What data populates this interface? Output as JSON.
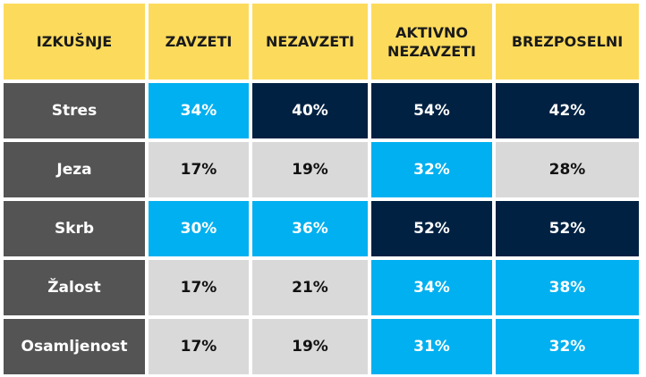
{
  "header": {
    "col0": "IZKUŠNJE",
    "col1": "ZAVZETI",
    "col2": "NEZAVZETI",
    "col3": "AKTIVNO\nNEZAVZETI",
    "col4": "BREZPOSELNI"
  },
  "rows": [
    {
      "label": "Stres",
      "values": [
        "34%",
        "40%",
        "54%",
        "42%"
      ],
      "shades": [
        "light",
        "dark",
        "dark",
        "dark"
      ]
    },
    {
      "label": "Jeza",
      "values": [
        "17%",
        "19%",
        "32%",
        "28%"
      ],
      "shades": [
        "grey",
        "grey",
        "light",
        "grey"
      ]
    },
    {
      "label": "Skrb",
      "values": [
        "30%",
        "36%",
        "52%",
        "52%"
      ],
      "shades": [
        "light",
        "light",
        "dark",
        "dark"
      ]
    },
    {
      "label": "Žalost",
      "values": [
        "17%",
        "21%",
        "34%",
        "38%"
      ],
      "shades": [
        "grey",
        "grey",
        "light",
        "light"
      ]
    },
    {
      "label": "Osamljenost",
      "values": [
        "17%",
        "19%",
        "31%",
        "32%"
      ],
      "shades": [
        "grey",
        "grey",
        "light",
        "light"
      ]
    }
  ],
  "colors": {
    "header_bg": "#fcdb5c",
    "row_label_bg": "#545454",
    "light_blue": "#00b0f0",
    "dark_navy": "#002142",
    "grey": "#d9d9d9"
  }
}
